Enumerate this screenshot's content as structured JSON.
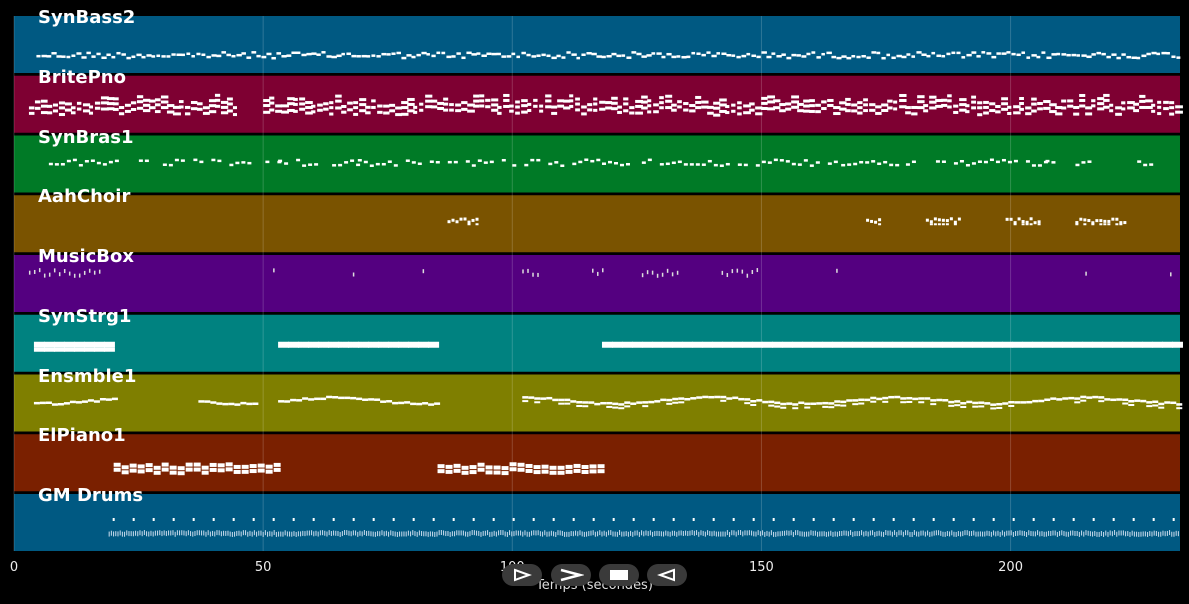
{
  "chart_data": {
    "type": "piano-roll",
    "xlabel": "Temps (secondes)",
    "x_ticks": [
      0,
      50,
      100,
      150,
      200
    ],
    "xlim": [
      0,
      234
    ],
    "tracks": [
      {
        "name": "SynBass2",
        "color": "#005982",
        "segments": [
          [
            4.5,
            234,
            "dense-small"
          ]
        ]
      },
      {
        "name": "BritePno",
        "color": "#7e0032",
        "segments": [
          [
            3,
            45,
            "chords"
          ],
          [
            50,
            234,
            "chords"
          ]
        ]
      },
      {
        "name": "SynBras1",
        "color": "#007a26",
        "segments": [
          [
            7,
            35,
            "sparse"
          ],
          [
            36,
            53,
            "sparse"
          ],
          [
            53,
            69,
            "sparse"
          ],
          [
            69,
            99,
            "sparse"
          ],
          [
            100,
            118,
            "sparse"
          ],
          [
            118,
            124,
            "sparse"
          ],
          [
            126,
            165,
            "sparse"
          ],
          [
            166,
            178,
            "sparse"
          ],
          [
            179,
            207,
            "sparse"
          ],
          [
            207,
            216,
            "sparse"
          ],
          [
            223,
            230,
            "sparse"
          ]
        ]
      },
      {
        "name": "AahChoir",
        "color": "#7a5300",
        "segments": [
          [
            87,
            93,
            "cluster"
          ],
          [
            171,
            174,
            "cluster"
          ],
          [
            183,
            190,
            "cluster"
          ],
          [
            199,
            206,
            "cluster"
          ],
          [
            213,
            223,
            "cluster"
          ]
        ]
      },
      {
        "name": "MusicBox",
        "color": "#540080",
        "segments": [
          [
            3,
            18,
            "blips"
          ],
          [
            52,
            53,
            "blips"
          ],
          [
            68,
            69,
            "blips"
          ],
          [
            82,
            83,
            "blips"
          ],
          [
            102,
            106,
            "blips"
          ],
          [
            116,
            119,
            "blips"
          ],
          [
            126,
            134,
            "blips"
          ],
          [
            142,
            150,
            "blips"
          ],
          [
            165,
            166,
            "blips"
          ],
          [
            215,
            216,
            "blips"
          ],
          [
            232,
            233,
            "blips"
          ]
        ]
      },
      {
        "name": "SynStrg1",
        "color": "#008280",
        "segments": [
          [
            4,
            20,
            "pads"
          ],
          [
            53,
            85,
            "pads"
          ],
          [
            118,
            234,
            "pads"
          ]
        ]
      },
      {
        "name": "Ensmble1",
        "color": "#7f7f00",
        "segments": [
          [
            4,
            20,
            "lines"
          ],
          [
            37,
            49,
            "lines"
          ],
          [
            53,
            85,
            "lines"
          ],
          [
            102,
            234,
            "lines"
          ]
        ]
      },
      {
        "name": "ElPiano1",
        "color": "#7a2000",
        "segments": [
          [
            20,
            53,
            "chords2"
          ],
          [
            85,
            118,
            "chords2"
          ]
        ]
      },
      {
        "name": "GM Drums",
        "color": "#005982",
        "segments": [
          [
            19,
            234,
            "drums"
          ]
        ]
      }
    ]
  },
  "controls": {
    "colors": {
      "bg": "#3a3a3a",
      "fg": "#ffffff"
    },
    "icons": [
      "play-icon",
      "fast-forward-icon",
      "stop-icon",
      "rewind-icon"
    ]
  }
}
